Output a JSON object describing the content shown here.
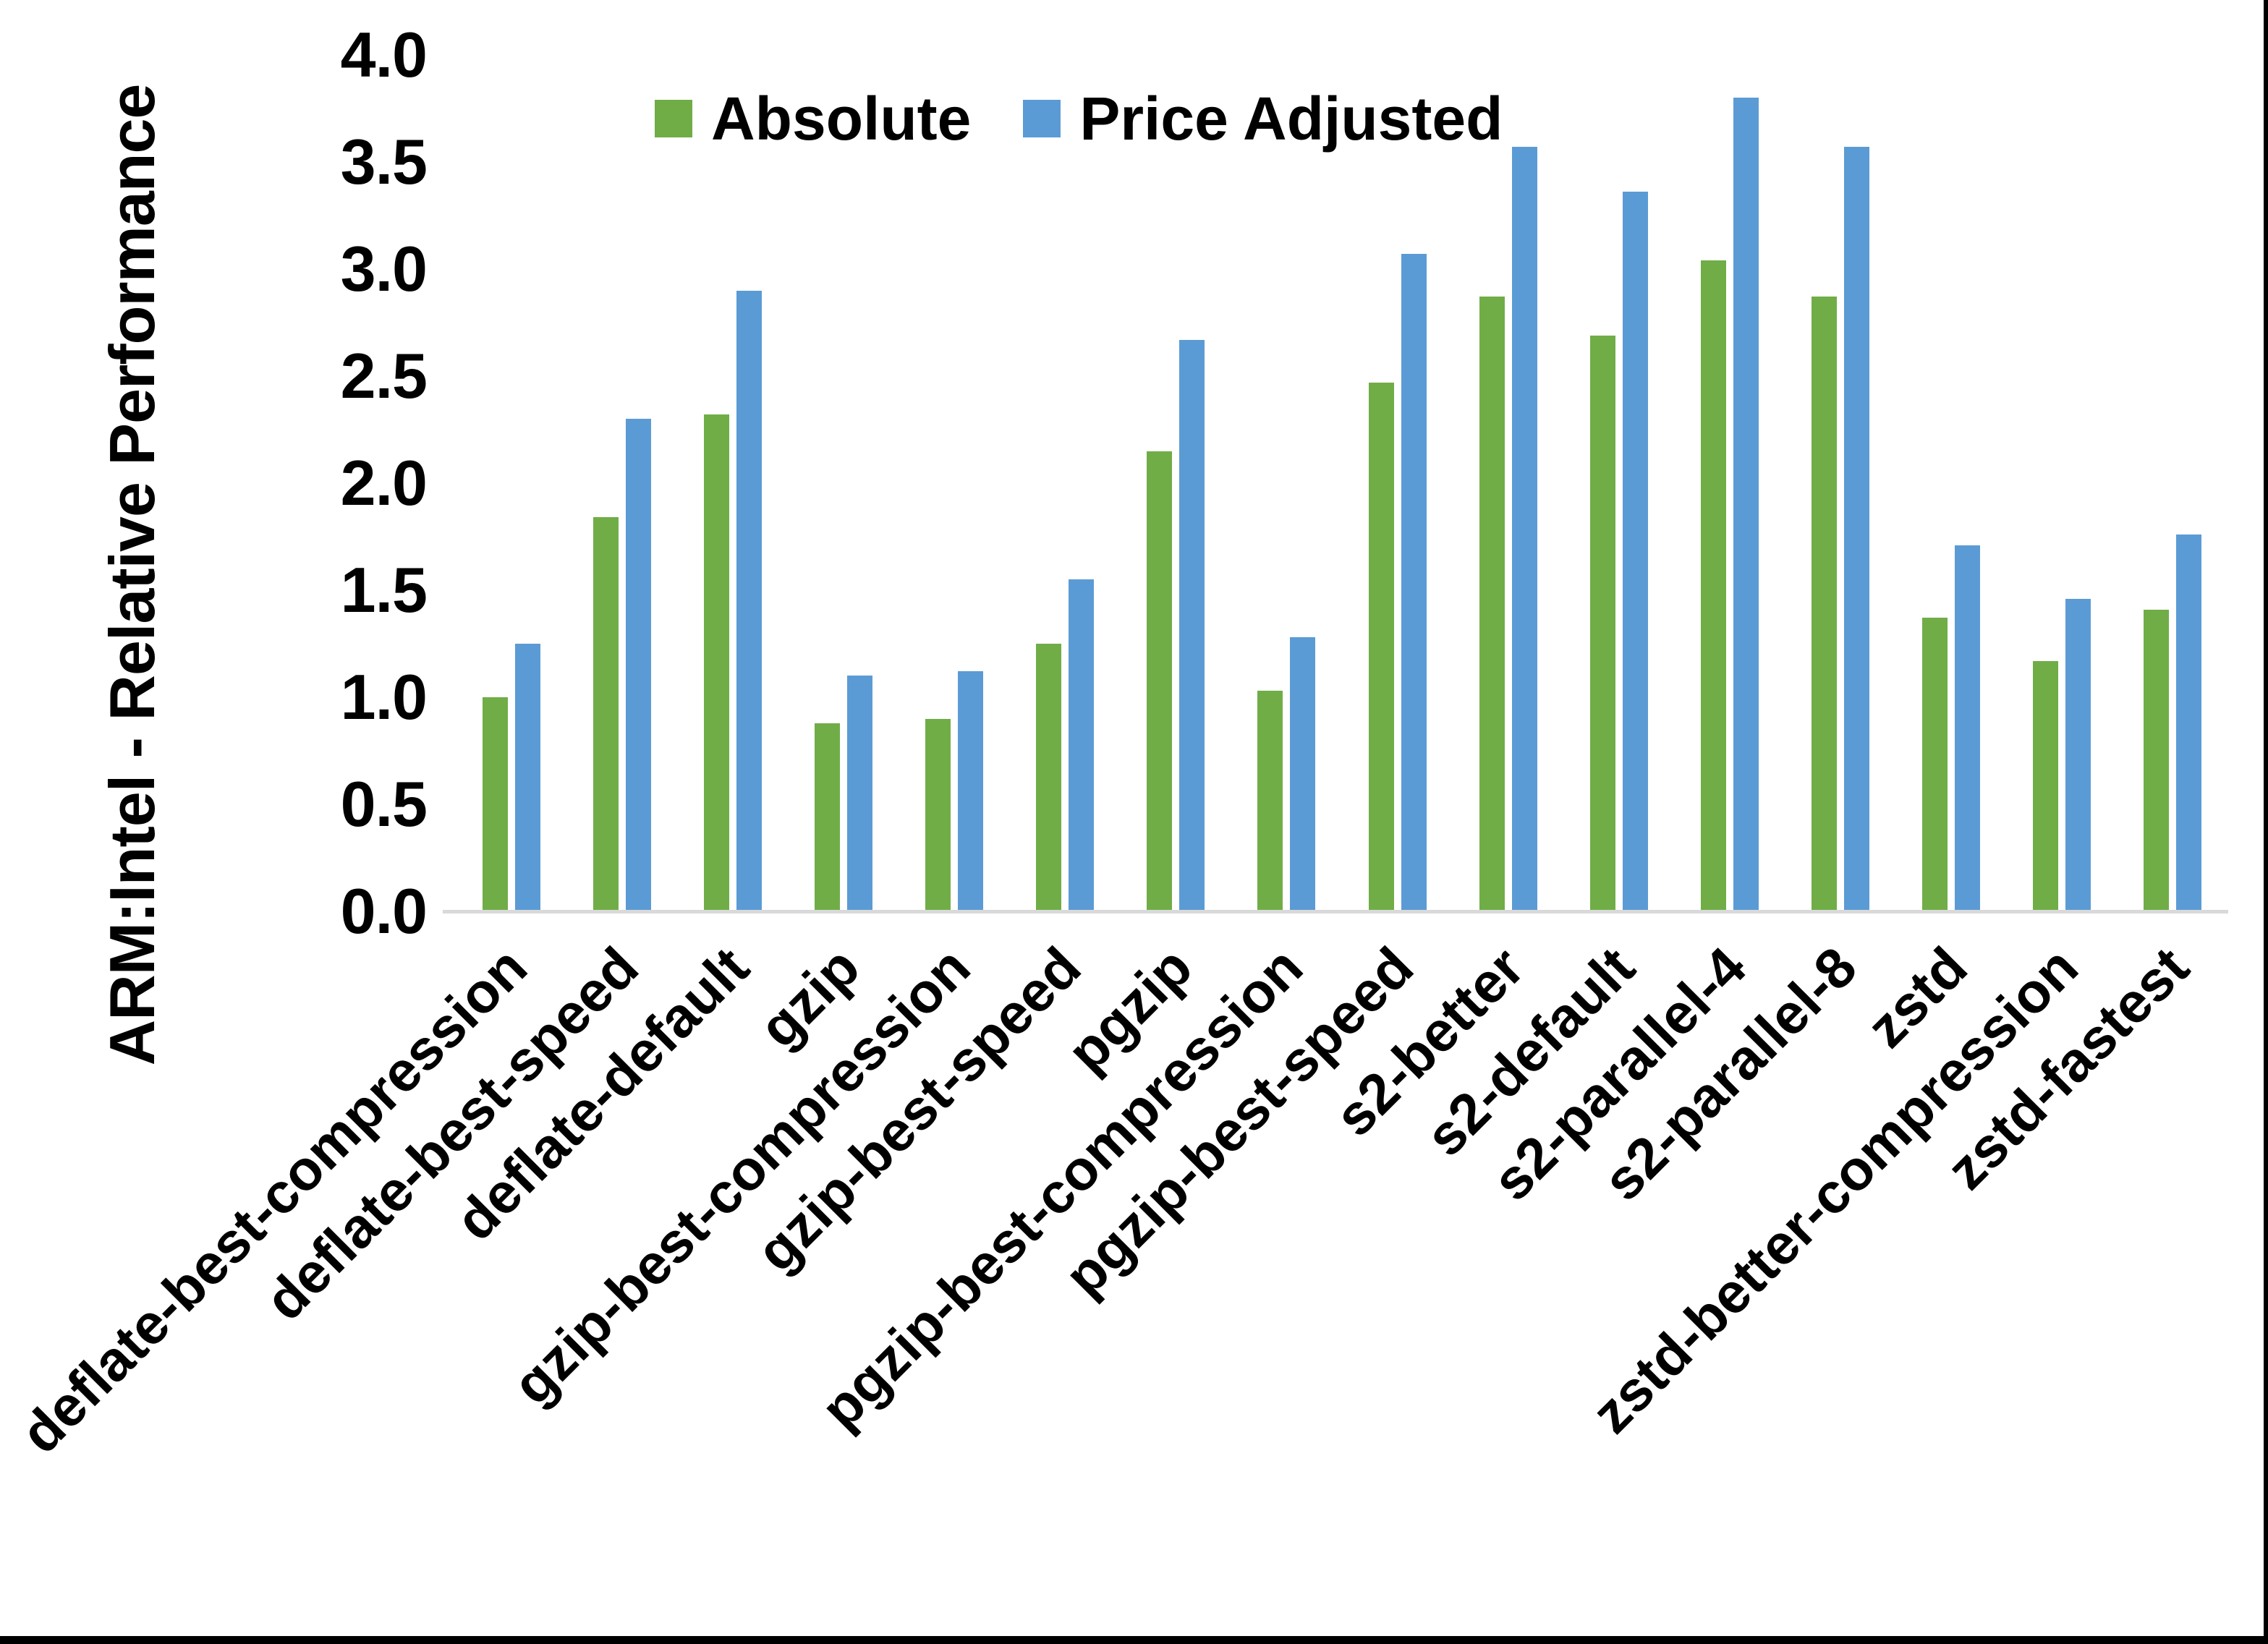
{
  "chart_data": {
    "type": "bar",
    "title": "",
    "xlabel": "",
    "ylabel": "ARM:Intel - Relative Performance",
    "ylim": [
      0.0,
      4.0
    ],
    "ytick_labels": [
      "0.0",
      "0.5",
      "1.0",
      "1.5",
      "2.0",
      "2.5",
      "3.0",
      "3.5",
      "4.0"
    ],
    "grid": false,
    "legend_position": "top-inside",
    "categories": [
      "deflate-best-compression",
      "deflate-best-speed",
      "deflate-default",
      "gzip",
      "gzip-best-compression",
      "gzip-best-speed",
      "pgzip",
      "pgzip-best-compression",
      "pgzip-best-speed",
      "s2-better",
      "s2-default",
      "s2-parallel-4",
      "s2-parallel-8",
      "zstd",
      "zstd-better-compression",
      "zstd-fastest"
    ],
    "series": [
      {
        "name": "Absolute",
        "color": "#70AD47",
        "values": [
          1.0,
          1.84,
          2.32,
          0.88,
          0.9,
          1.25,
          2.15,
          1.03,
          2.47,
          2.87,
          2.69,
          3.04,
          2.87,
          1.37,
          1.17,
          1.41
        ]
      },
      {
        "name": "Price Adjusted",
        "color": "#5B9BD5",
        "values": [
          1.25,
          2.3,
          2.9,
          1.1,
          1.12,
          1.55,
          2.67,
          1.28,
          3.07,
          3.57,
          3.36,
          3.8,
          3.57,
          1.71,
          1.46,
          1.76
        ]
      }
    ]
  },
  "colors": {
    "background": "#ffffff",
    "axis_line": "#d9d9d9",
    "text": "#000000",
    "frame_border": "#000000"
  }
}
